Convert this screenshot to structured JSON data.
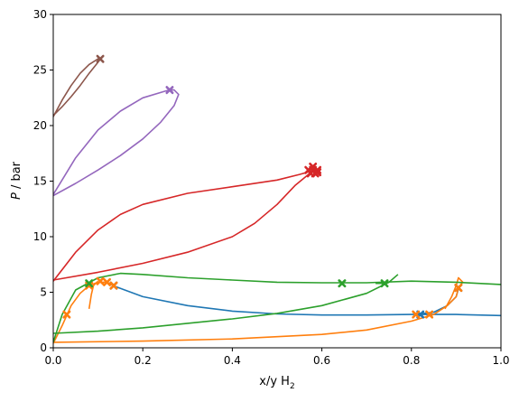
{
  "chart_data": {
    "type": "line",
    "xlabel": "x/y H",
    "xlabel_sub": "2",
    "ylabel_italic": "P",
    "ylabel_unit": " / bar",
    "xlim": [
      0,
      1
    ],
    "ylim": [
      0,
      30
    ],
    "xticks": [
      0.0,
      0.2,
      0.4,
      0.6,
      0.8,
      1.0
    ],
    "xtick_labels": [
      "0.0",
      "0.2",
      "0.4",
      "0.6",
      "0.8",
      "1.0"
    ],
    "yticks": [
      0,
      5,
      10,
      15,
      20,
      25,
      30
    ],
    "ytick_labels": [
      "0",
      "5",
      "10",
      "15",
      "20",
      "25",
      "30"
    ],
    "grid": false,
    "series": [
      {
        "color": "#1f77b4",
        "lines": [
          [
            [
              0.14,
              5.5
            ],
            [
              0.2,
              4.6
            ],
            [
              0.3,
              3.8
            ],
            [
              0.4,
              3.3
            ],
            [
              0.5,
              3.05
            ],
            [
              0.6,
              2.95
            ],
            [
              0.7,
              2.95
            ],
            [
              0.8,
              3.0
            ],
            [
              0.9,
              3.0
            ],
            [
              1.0,
              2.9
            ]
          ],
          [
            [
              0.81,
              3.0
            ],
            [
              0.85,
              3.2
            ],
            [
              0.88,
              3.8
            ],
            [
              0.9,
              4.6
            ],
            [
              0.905,
              5.3
            ]
          ]
        ],
        "markers": [
          [
            0.135,
            5.6
          ],
          [
            0.82,
            3.0
          ],
          [
            0.905,
            5.4
          ]
        ]
      },
      {
        "color": "#ff7f0e",
        "lines": [
          [
            [
              0.0,
              0.5
            ],
            [
              0.2,
              0.6
            ],
            [
              0.4,
              0.8
            ],
            [
              0.6,
              1.2
            ],
            [
              0.7,
              1.6
            ],
            [
              0.8,
              2.4
            ],
            [
              0.85,
              3.0
            ],
            [
              0.88,
              3.8
            ],
            [
              0.9,
              4.6
            ],
            [
              0.905,
              5.4
            ]
          ],
          [
            [
              0.0,
              0.4
            ],
            [
              0.02,
              2.0
            ],
            [
              0.04,
              3.8
            ],
            [
              0.06,
              4.9
            ],
            [
              0.08,
              5.6
            ],
            [
              0.1,
              5.9
            ],
            [
              0.12,
              5.9
            ],
            [
              0.14,
              5.5
            ]
          ],
          [
            [
              0.08,
              3.5
            ],
            [
              0.085,
              4.8
            ],
            [
              0.09,
              5.6
            ],
            [
              0.1,
              6.0
            ]
          ],
          [
            [
              0.875,
              3.5
            ],
            [
              0.89,
              4.6
            ],
            [
              0.9,
              5.6
            ],
            [
              0.905,
              6.3
            ],
            [
              0.915,
              5.9
            ],
            [
              0.9,
              5.2
            ]
          ]
        ],
        "markers": [
          [
            0.03,
            3.0
          ],
          [
            0.08,
            5.6
          ],
          [
            0.105,
            6.0
          ],
          [
            0.12,
            5.9
          ],
          [
            0.135,
            5.6
          ],
          [
            0.81,
            3.0
          ],
          [
            0.84,
            3.0
          ],
          [
            0.905,
            5.4
          ]
        ]
      },
      {
        "color": "#2ca02c",
        "lines": [
          [
            [
              0.0,
              1.3
            ],
            [
              0.1,
              1.5
            ],
            [
              0.2,
              1.8
            ],
            [
              0.3,
              2.2
            ],
            [
              0.4,
              2.6
            ],
            [
              0.5,
              3.1
            ],
            [
              0.6,
              3.8
            ],
            [
              0.7,
              4.9
            ],
            [
              0.75,
              5.9
            ],
            [
              0.77,
              6.6
            ]
          ],
          [
            [
              0.0,
              0.5
            ],
            [
              0.02,
              3.0
            ],
            [
              0.05,
              5.2
            ],
            [
              0.1,
              6.3
            ],
            [
              0.15,
              6.7
            ],
            [
              0.2,
              6.6
            ],
            [
              0.3,
              6.3
            ],
            [
              0.4,
              6.1
            ],
            [
              0.5,
              5.9
            ],
            [
              0.6,
              5.85
            ],
            [
              0.7,
              5.85
            ],
            [
              0.8,
              6.0
            ],
            [
              0.9,
              5.9
            ],
            [
              1.0,
              5.7
            ]
          ],
          [
            [
              0.72,
              5.8
            ],
            [
              0.745,
              5.8
            ]
          ]
        ],
        "markers": [
          [
            0.08,
            5.8
          ],
          [
            0.645,
            5.8
          ],
          [
            0.74,
            5.8
          ]
        ]
      },
      {
        "color": "#d62728",
        "lines": [
          [
            [
              0.0,
              6.0
            ],
            [
              0.05,
              8.6
            ],
            [
              0.1,
              10.6
            ],
            [
              0.15,
              12.0
            ],
            [
              0.2,
              12.9
            ],
            [
              0.3,
              13.9
            ],
            [
              0.4,
              14.5
            ],
            [
              0.5,
              15.1
            ],
            [
              0.55,
              15.6
            ],
            [
              0.585,
              16.0
            ]
          ],
          [
            [
              0.0,
              6.1
            ],
            [
              0.1,
              6.8
            ],
            [
              0.2,
              7.6
            ],
            [
              0.3,
              8.6
            ],
            [
              0.4,
              10.0
            ],
            [
              0.45,
              11.2
            ],
            [
              0.5,
              12.9
            ],
            [
              0.54,
              14.6
            ],
            [
              0.57,
              15.6
            ],
            [
              0.585,
              16.0
            ]
          ]
        ],
        "markers": [
          [
            0.57,
            16.0
          ],
          [
            0.58,
            16.0
          ],
          [
            0.59,
            16.0
          ],
          [
            0.575,
            15.7
          ],
          [
            0.585,
            15.7
          ],
          [
            0.58,
            16.3
          ],
          [
            0.59,
            15.8
          ]
        ]
      },
      {
        "color": "#9467bd",
        "lines": [
          [
            [
              0.0,
              13.8
            ],
            [
              0.05,
              17.1
            ],
            [
              0.1,
              19.6
            ],
            [
              0.15,
              21.3
            ],
            [
              0.2,
              22.5
            ],
            [
              0.25,
              23.1
            ],
            [
              0.26,
              23.2
            ]
          ],
          [
            [
              0.0,
              13.7
            ],
            [
              0.05,
              14.8
            ],
            [
              0.1,
              16.0
            ],
            [
              0.15,
              17.3
            ],
            [
              0.2,
              18.8
            ],
            [
              0.24,
              20.3
            ],
            [
              0.27,
              21.8
            ],
            [
              0.28,
              22.8
            ],
            [
              0.27,
              23.2
            ],
            [
              0.26,
              23.2
            ]
          ]
        ],
        "markers": [
          [
            0.26,
            23.2
          ]
        ]
      },
      {
        "color": "#8c564b",
        "lines": [
          [
            [
              0.0,
              20.8
            ],
            [
              0.02,
              22.3
            ],
            [
              0.04,
              23.6
            ],
            [
              0.06,
              24.7
            ],
            [
              0.08,
              25.5
            ],
            [
              0.1,
              26.0
            ],
            [
              0.105,
              26.0
            ]
          ],
          [
            [
              0.0,
              20.9
            ],
            [
              0.02,
              21.7
            ],
            [
              0.04,
              22.6
            ],
            [
              0.06,
              23.6
            ],
            [
              0.08,
              24.7
            ],
            [
              0.1,
              25.7
            ],
            [
              0.105,
              26.0
            ]
          ]
        ],
        "markers": [
          [
            0.105,
            26.0
          ]
        ]
      }
    ]
  }
}
